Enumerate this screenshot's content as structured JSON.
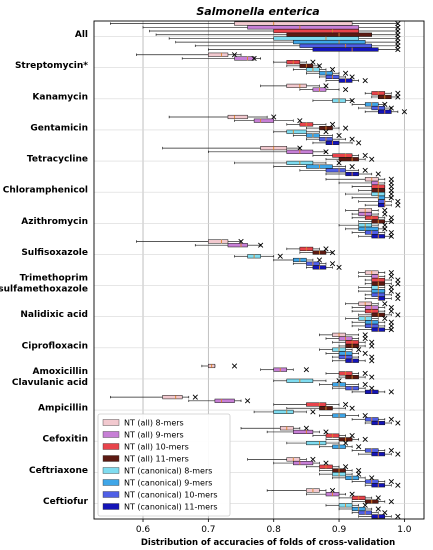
{
  "chart_data": {
    "type": "boxplot",
    "title": "Salmonella enterica",
    "xlabel": "Distribution of accuracies of folds of cross-validation",
    "ylabel": "",
    "xlim": [
      0.525,
      1.03
    ],
    "xticks": [
      0.6,
      0.7,
      0.8,
      0.9,
      1.0
    ],
    "xtick_labels": [
      "0.6",
      "0.7",
      "0.8",
      "0.9",
      "1.0"
    ],
    "grid": true,
    "categories": [
      [
        "All"
      ],
      [
        "Streptomycin*"
      ],
      [
        "Kanamycin"
      ],
      [
        "Gentamicin"
      ],
      [
        "Tetracycline"
      ],
      [
        "Chloramphenicol"
      ],
      [
        "Azithromycin"
      ],
      [
        "Sulfisoxazole"
      ],
      [
        "Trimethoprim",
        "sulfamethoxazole"
      ],
      [
        "Nalidixic acid"
      ],
      [
        "Ciprofloxacin"
      ],
      [
        "Amoxicillin",
        "Clavulanic acid"
      ],
      [
        "Ampicillin"
      ],
      [
        "Cefoxitin"
      ],
      [
        "Ceftriaxone"
      ],
      [
        "Ceftiofur"
      ]
    ],
    "series_colors": [
      "#f2c9cf",
      "#c77fd6",
      "#e8434b",
      "#5c1a12",
      "#7fdcf0",
      "#3fa6e8",
      "#4f5fe6",
      "#1414b8"
    ],
    "legend": {
      "placement": "lower-left",
      "entries": [
        "NT (all) 8-mers",
        "NT (all) 9-mers",
        "NT (all) 10-mers",
        "NT (all) 11-mers",
        "NT (canonical) 8-mers",
        "NT (canonical) 9-mers",
        "NT (canonical) 10-mers",
        "NT (canonical) 11-mers"
      ]
    },
    "boxes": [
      [
        [
          0.55,
          0.74,
          0.8,
          0.92,
          0.99,
          0.99
        ],
        [
          0.6,
          0.76,
          0.84,
          0.93,
          0.99,
          0.99
        ],
        [
          0.61,
          0.8,
          0.89,
          0.93,
          0.99,
          0.99
        ],
        [
          0.62,
          0.82,
          0.9,
          0.95,
          0.99,
          0.99
        ],
        [
          0.64,
          0.8,
          0.88,
          0.93,
          0.99,
          0.99
        ],
        [
          0.65,
          0.83,
          0.9,
          0.94,
          0.99,
          0.99
        ],
        [
          0.68,
          0.84,
          0.91,
          0.95,
          0.99,
          0.99
        ],
        [
          0.7,
          0.86,
          0.92,
          0.96,
          0.99,
          0.99
        ]
      ],
      [
        [
          0.59,
          0.7,
          0.72,
          0.73,
          0.75,
          0.74
        ],
        [
          0.66,
          0.74,
          0.76,
          0.77,
          0.78,
          0.77
        ],
        [
          0.8,
          0.82,
          0.83,
          0.84,
          0.85,
          0.86
        ],
        [
          0.82,
          0.84,
          0.85,
          0.86,
          0.87,
          0.87
        ],
        [
          0.83,
          0.85,
          0.86,
          0.87,
          0.88,
          0.89
        ],
        [
          0.85,
          0.87,
          0.88,
          0.89,
          0.9,
          0.91
        ],
        [
          0.87,
          0.88,
          0.89,
          0.9,
          0.91,
          0.92
        ],
        [
          0.88,
          0.9,
          0.91,
          0.92,
          0.93,
          0.94
        ]
      ],
      [
        [
          0.78,
          0.82,
          0.84,
          0.85,
          0.87,
          0.88
        ],
        [
          0.84,
          0.86,
          0.87,
          0.88,
          0.9,
          0.91
        ],
        [
          0.94,
          0.95,
          0.96,
          0.97,
          0.98,
          0.99
        ],
        [
          0.95,
          0.96,
          0.97,
          0.98,
          0.99,
          0.99
        ],
        [
          0.86,
          0.89,
          0.9,
          0.91,
          0.92,
          0.92
        ],
        [
          0.92,
          0.94,
          0.95,
          0.96,
          0.97,
          0.97
        ],
        [
          0.93,
          0.95,
          0.96,
          0.97,
          0.98,
          0.98
        ],
        [
          0.94,
          0.96,
          0.97,
          0.98,
          0.99,
          1.0
        ]
      ],
      [
        [
          0.64,
          0.73,
          0.74,
          0.76,
          0.79,
          0.8
        ],
        [
          0.74,
          0.77,
          0.78,
          0.8,
          0.83,
          0.84
        ],
        [
          0.82,
          0.84,
          0.85,
          0.86,
          0.88,
          0.89
        ],
        [
          0.85,
          0.87,
          0.88,
          0.89,
          0.9,
          0.91
        ],
        [
          0.8,
          0.82,
          0.83,
          0.85,
          0.87,
          0.88
        ],
        [
          0.83,
          0.85,
          0.86,
          0.87,
          0.89,
          0.9
        ],
        [
          0.85,
          0.87,
          0.88,
          0.89,
          0.91,
          0.92
        ],
        [
          0.86,
          0.88,
          0.89,
          0.9,
          0.92,
          0.93
        ]
      ],
      [
        [
          0.63,
          0.78,
          0.8,
          0.82,
          0.84,
          0.84
        ],
        [
          0.7,
          0.82,
          0.84,
          0.86,
          0.88,
          0.88
        ],
        [
          0.86,
          0.89,
          0.91,
          0.92,
          0.93,
          0.94
        ],
        [
          0.88,
          0.9,
          0.92,
          0.93,
          0.94,
          0.95
        ],
        [
          0.74,
          0.82,
          0.84,
          0.86,
          0.88,
          0.9
        ],
        [
          0.8,
          0.85,
          0.87,
          0.89,
          0.91,
          0.92
        ],
        [
          0.84,
          0.88,
          0.9,
          0.91,
          0.93,
          0.94
        ],
        [
          0.88,
          0.91,
          0.92,
          0.93,
          0.95,
          0.96
        ]
      ],
      [
        [
          0.88,
          0.94,
          0.95,
          0.96,
          0.97,
          0.98
        ],
        [
          0.9,
          0.95,
          0.96,
          0.96,
          0.97,
          0.98
        ],
        [
          0.92,
          0.95,
          0.96,
          0.97,
          0.97,
          0.98
        ],
        [
          0.93,
          0.95,
          0.96,
          0.97,
          0.97,
          0.98
        ],
        [
          0.91,
          0.95,
          0.96,
          0.97,
          0.97,
          0.98
        ],
        [
          0.92,
          0.96,
          0.96,
          0.97,
          0.98,
          0.98
        ],
        [
          0.93,
          0.96,
          0.97,
          0.97,
          0.98,
          0.99
        ],
        [
          0.94,
          0.96,
          0.97,
          0.97,
          0.98,
          0.99
        ]
      ],
      [
        [
          0.91,
          0.93,
          0.94,
          0.95,
          0.96,
          0.97
        ],
        [
          0.92,
          0.93,
          0.94,
          0.95,
          0.96,
          0.97
        ],
        [
          0.92,
          0.94,
          0.95,
          0.96,
          0.97,
          0.98
        ],
        [
          0.93,
          0.95,
          0.96,
          0.97,
          0.98,
          0.98
        ],
        [
          0.9,
          0.93,
          0.94,
          0.95,
          0.96,
          0.97
        ],
        [
          0.91,
          0.93,
          0.94,
          0.96,
          0.97,
          0.97
        ],
        [
          0.92,
          0.94,
          0.95,
          0.96,
          0.97,
          0.98
        ],
        [
          0.93,
          0.95,
          0.96,
          0.97,
          0.98,
          0.98
        ]
      ],
      [
        [
          0.59,
          0.7,
          0.72,
          0.73,
          0.75,
          0.75
        ],
        [
          0.68,
          0.73,
          0.75,
          0.76,
          0.78,
          0.78
        ],
        [
          0.82,
          0.84,
          0.85,
          0.86,
          0.87,
          0.88
        ],
        [
          0.84,
          0.86,
          0.87,
          0.88,
          0.89,
          0.89
        ],
        [
          0.74,
          0.76,
          0.77,
          0.78,
          0.8,
          0.81
        ],
        [
          0.8,
          0.83,
          0.84,
          0.85,
          0.86,
          0.87
        ],
        [
          0.83,
          0.85,
          0.86,
          0.87,
          0.88,
          0.89
        ],
        [
          0.85,
          0.86,
          0.87,
          0.88,
          0.89,
          0.9
        ]
      ],
      [
        [
          0.93,
          0.94,
          0.95,
          0.96,
          0.97,
          0.98
        ],
        [
          0.93,
          0.95,
          0.96,
          0.96,
          0.97,
          0.98
        ],
        [
          0.94,
          0.95,
          0.96,
          0.97,
          0.98,
          0.99
        ],
        [
          0.94,
          0.95,
          0.96,
          0.97,
          0.98,
          0.99
        ],
        [
          0.93,
          0.95,
          0.96,
          0.96,
          0.97,
          0.98
        ],
        [
          0.93,
          0.95,
          0.96,
          0.97,
          0.97,
          0.98
        ],
        [
          0.94,
          0.95,
          0.96,
          0.97,
          0.98,
          0.99
        ],
        [
          0.94,
          0.96,
          0.96,
          0.97,
          0.98,
          0.99
        ]
      ],
      [
        [
          0.91,
          0.93,
          0.94,
          0.95,
          0.96,
          0.97
        ],
        [
          0.92,
          0.94,
          0.95,
          0.96,
          0.97,
          0.98
        ],
        [
          0.92,
          0.94,
          0.95,
          0.96,
          0.97,
          0.98
        ],
        [
          0.93,
          0.95,
          0.96,
          0.97,
          0.98,
          0.99
        ],
        [
          0.91,
          0.93,
          0.94,
          0.95,
          0.96,
          0.97
        ],
        [
          0.92,
          0.94,
          0.95,
          0.96,
          0.97,
          0.98
        ],
        [
          0.92,
          0.94,
          0.95,
          0.96,
          0.97,
          0.98
        ],
        [
          0.93,
          0.95,
          0.96,
          0.97,
          0.98,
          0.98
        ]
      ],
      [
        [
          0.87,
          0.89,
          0.9,
          0.91,
          0.93,
          0.94
        ],
        [
          0.88,
          0.9,
          0.91,
          0.92,
          0.93,
          0.94
        ],
        [
          0.89,
          0.91,
          0.92,
          0.93,
          0.94,
          0.95
        ],
        [
          0.9,
          0.91,
          0.92,
          0.93,
          0.94,
          0.95
        ],
        [
          0.87,
          0.89,
          0.9,
          0.91,
          0.92,
          0.93
        ],
        [
          0.88,
          0.9,
          0.91,
          0.92,
          0.93,
          0.94
        ],
        [
          0.89,
          0.9,
          0.91,
          0.92,
          0.93,
          0.95
        ],
        [
          0.89,
          0.91,
          0.92,
          0.93,
          0.94,
          0.95
        ]
      ],
      [
        [
          0.69,
          0.7,
          0.705,
          0.71,
          0.71,
          0.74
        ],
        [
          0.78,
          0.8,
          0.81,
          0.82,
          0.83,
          0.85
        ],
        [
          0.88,
          0.9,
          0.91,
          0.92,
          0.93,
          0.94
        ],
        [
          0.9,
          0.91,
          0.92,
          0.93,
          0.94,
          0.95
        ],
        [
          0.8,
          0.82,
          0.84,
          0.86,
          0.88,
          0.9
        ],
        [
          0.87,
          0.89,
          0.9,
          0.91,
          0.93,
          0.94
        ],
        [
          0.89,
          0.91,
          0.92,
          0.93,
          0.94,
          0.95
        ],
        [
          0.92,
          0.94,
          0.95,
          0.96,
          0.97,
          0.98
        ]
      ],
      [
        [
          0.55,
          0.63,
          0.65,
          0.66,
          0.67,
          0.68
        ],
        [
          0.67,
          0.71,
          0.72,
          0.74,
          0.75,
          0.76
        ],
        [
          0.8,
          0.85,
          0.87,
          0.88,
          0.9,
          0.91
        ],
        [
          0.82,
          0.87,
          0.88,
          0.89,
          0.91,
          0.92
        ],
        [
          0.77,
          0.8,
          0.82,
          0.83,
          0.85,
          0.86
        ],
        [
          0.87,
          0.89,
          0.9,
          0.91,
          0.93,
          0.94
        ],
        [
          0.92,
          0.94,
          0.95,
          0.96,
          0.97,
          0.98
        ],
        [
          0.94,
          0.95,
          0.96,
          0.97,
          0.98,
          0.99
        ]
      ],
      [
        [
          0.75,
          0.81,
          0.82,
          0.83,
          0.84,
          0.85
        ],
        [
          0.79,
          0.83,
          0.85,
          0.86,
          0.87,
          0.88
        ],
        [
          0.86,
          0.88,
          0.89,
          0.9,
          0.91,
          0.92
        ],
        [
          0.88,
          0.9,
          0.91,
          0.92,
          0.93,
          0.94
        ],
        [
          0.82,
          0.85,
          0.87,
          0.88,
          0.9,
          0.91
        ],
        [
          0.87,
          0.89,
          0.9,
          0.91,
          0.92,
          0.93
        ],
        [
          0.92,
          0.94,
          0.95,
          0.96,
          0.97,
          0.98
        ],
        [
          0.93,
          0.95,
          0.96,
          0.97,
          0.98,
          0.99
        ]
      ],
      [
        [
          0.76,
          0.82,
          0.83,
          0.84,
          0.85,
          0.86
        ],
        [
          0.8,
          0.83,
          0.84,
          0.86,
          0.87,
          0.88
        ],
        [
          0.85,
          0.87,
          0.88,
          0.89,
          0.9,
          0.91
        ],
        [
          0.87,
          0.89,
          0.9,
          0.91,
          0.92,
          0.93
        ],
        [
          0.87,
          0.89,
          0.9,
          0.91,
          0.92,
          0.93
        ],
        [
          0.89,
          0.91,
          0.92,
          0.93,
          0.94,
          0.95
        ],
        [
          0.92,
          0.94,
          0.95,
          0.96,
          0.97,
          0.98
        ],
        [
          0.94,
          0.95,
          0.96,
          0.97,
          0.98,
          0.99
        ]
      ],
      [
        [
          0.79,
          0.85,
          0.86,
          0.87,
          0.88,
          0.89
        ],
        [
          0.85,
          0.88,
          0.89,
          0.9,
          0.91,
          0.92
        ],
        [
          0.9,
          0.92,
          0.93,
          0.94,
          0.95,
          0.96
        ],
        [
          0.92,
          0.94,
          0.95,
          0.96,
          0.97,
          0.98
        ],
        [
          0.88,
          0.9,
          0.91,
          0.92,
          0.93,
          0.94
        ],
        [
          0.9,
          0.92,
          0.93,
          0.94,
          0.95,
          0.96
        ],
        [
          0.92,
          0.93,
          0.94,
          0.95,
          0.96,
          0.97
        ],
        [
          0.93,
          0.95,
          0.96,
          0.97,
          0.98,
          0.99
        ]
      ]
    ]
  }
}
